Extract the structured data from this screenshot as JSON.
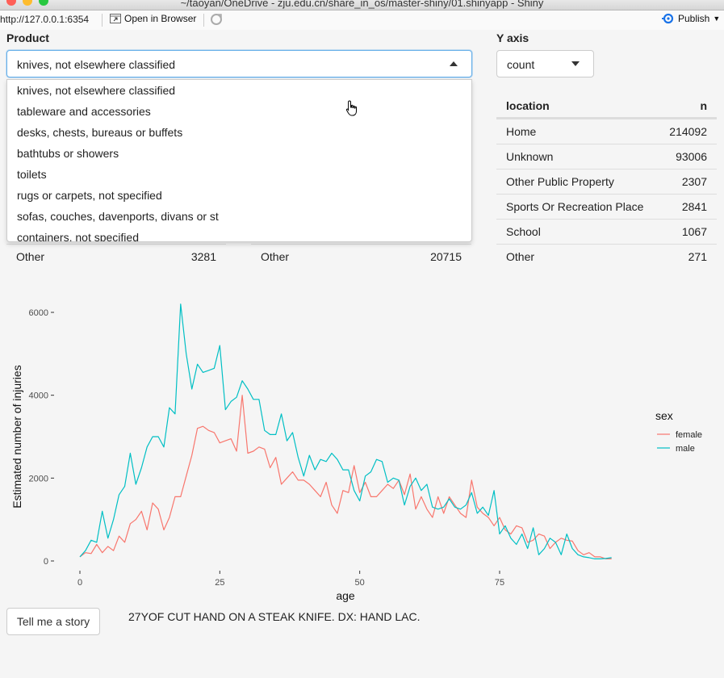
{
  "window": {
    "title": "~/taoyan/OneDrive - zju.edu.cn/share_in_os/master-shiny/01.shinyapp - Shiny"
  },
  "toolbar": {
    "url": "http://127.0.0.1:6354",
    "open_in_browser": "Open in Browser",
    "publish": "Publish"
  },
  "product": {
    "label": "Product",
    "selected": "knives, not elsewhere classified",
    "options": [
      "knives, not elsewhere classified",
      "tableware and accessories",
      "desks, chests, bureaus or buffets",
      "bathtubs or showers",
      "toilets",
      "rugs or carpets, not specified",
      "sofas, couches, davenports, divans or st",
      "containers, not specified"
    ]
  },
  "yaxis": {
    "label": "Y axis",
    "selected": "count"
  },
  "location_table": {
    "headers": [
      "location",
      "n"
    ],
    "rows": [
      [
        "Home",
        "214092"
      ],
      [
        "Unknown",
        "93006"
      ],
      [
        "Other Public Property",
        "2307"
      ],
      [
        "Sports Or Recreation Place",
        "2841"
      ],
      [
        "School",
        "1067"
      ],
      [
        "Other",
        "271"
      ]
    ]
  },
  "hidden_tables": {
    "left": {
      "label": "Other",
      "value": "3281"
    },
    "middle": {
      "label": "Other",
      "value": "20715"
    }
  },
  "chart_data": {
    "type": "line",
    "xlabel": "age",
    "ylabel": "Estimated number of injuries",
    "xlim": [
      0,
      95
    ],
    "ylim": [
      0,
      6300
    ],
    "x_ticks": [
      0,
      25,
      50,
      75
    ],
    "y_ticks": [
      0,
      2000,
      4000,
      6000
    ],
    "legend": {
      "title": "sex",
      "position": "right"
    },
    "series": [
      {
        "name": "female",
        "color": "#f8766d",
        "x": [
          0,
          1,
          2,
          3,
          4,
          5,
          6,
          7,
          8,
          9,
          10,
          11,
          12,
          13,
          14,
          15,
          16,
          17,
          18,
          19,
          20,
          21,
          22,
          23,
          24,
          25,
          26,
          27,
          28,
          29,
          30,
          31,
          32,
          33,
          34,
          35,
          36,
          37,
          38,
          39,
          40,
          41,
          42,
          43,
          44,
          45,
          46,
          47,
          48,
          49,
          50,
          51,
          52,
          53,
          54,
          55,
          56,
          57,
          58,
          59,
          60,
          61,
          62,
          63,
          64,
          65,
          66,
          67,
          68,
          69,
          70,
          71,
          72,
          73,
          74,
          75,
          76,
          77,
          78,
          79,
          80,
          81,
          82,
          83,
          84,
          85,
          86,
          87,
          88,
          89,
          90,
          91,
          92,
          93,
          94,
          95
        ],
        "values": [
          100,
          200,
          180,
          400,
          200,
          350,
          250,
          600,
          450,
          900,
          1000,
          1200,
          750,
          1400,
          1250,
          750,
          1050,
          1550,
          1550,
          2050,
          2550,
          3200,
          3250,
          3150,
          3100,
          2850,
          2900,
          2950,
          2650,
          4000,
          2600,
          2650,
          2750,
          2700,
          2250,
          2500,
          1850,
          2000,
          2150,
          1950,
          1950,
          1850,
          1700,
          1550,
          1900,
          1350,
          1150,
          1700,
          1650,
          2300,
          1650,
          1900,
          1550,
          1550,
          1700,
          1850,
          1750,
          1950,
          1600,
          2100,
          1250,
          1550,
          1250,
          1050,
          1550,
          1150,
          1550,
          1350,
          1150,
          1050,
          1950,
          1300,
          1150,
          1050,
          850,
          1050,
          750,
          650,
          850,
          800,
          450,
          500,
          650,
          600,
          300,
          450,
          550,
          500,
          480,
          250,
          150,
          200,
          100,
          100,
          50,
          50
        ]
      },
      {
        "name": "male",
        "color": "#00bfc4",
        "x": [
          0,
          1,
          2,
          3,
          4,
          5,
          6,
          7,
          8,
          9,
          10,
          11,
          12,
          13,
          14,
          15,
          16,
          17,
          18,
          19,
          20,
          21,
          22,
          23,
          24,
          25,
          26,
          27,
          28,
          29,
          30,
          31,
          32,
          33,
          34,
          35,
          36,
          37,
          38,
          39,
          40,
          41,
          42,
          43,
          44,
          45,
          46,
          47,
          48,
          49,
          50,
          51,
          52,
          53,
          54,
          55,
          56,
          57,
          58,
          59,
          60,
          61,
          62,
          63,
          64,
          65,
          66,
          67,
          68,
          69,
          70,
          71,
          72,
          73,
          74,
          75,
          76,
          77,
          78,
          79,
          80,
          81,
          82,
          83,
          84,
          85,
          86,
          87,
          88,
          89,
          90,
          91,
          92,
          93,
          94,
          95
        ],
        "values": [
          100,
          250,
          500,
          450,
          1200,
          550,
          1000,
          1600,
          1800,
          2600,
          1850,
          2250,
          2750,
          3000,
          3000,
          2750,
          3700,
          3550,
          6200,
          5000,
          4150,
          4750,
          4550,
          4600,
          4650,
          5200,
          3650,
          3850,
          3950,
          4350,
          4150,
          3900,
          3900,
          3150,
          3050,
          3050,
          3550,
          2900,
          3100,
          2500,
          2050,
          2550,
          2200,
          2450,
          2400,
          2600,
          2450,
          2200,
          2200,
          1700,
          1450,
          2050,
          2150,
          2450,
          2400,
          1900,
          2000,
          1950,
          1350,
          1800,
          2000,
          1700,
          1850,
          1300,
          1250,
          1300,
          1500,
          1300,
          1250,
          1350,
          1650,
          1150,
          1300,
          1100,
          1700,
          650,
          850,
          550,
          400,
          650,
          300,
          800,
          150,
          300,
          550,
          450,
          150,
          650,
          300,
          150,
          100,
          80,
          50,
          50,
          60,
          80
        ]
      }
    ]
  },
  "story": {
    "button": "Tell me a story",
    "text": "27YOF CUT HAND ON A STEAK KNIFE. DX: HAND LAC."
  }
}
